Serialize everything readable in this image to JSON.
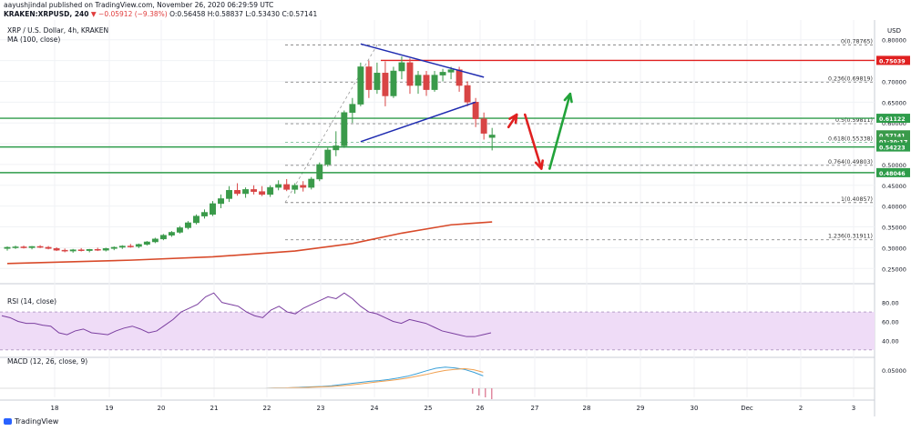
{
  "header": {
    "publisher_line": "aayushjindal published on TradingView.com, November 26, 2020 06:29:59 UTC",
    "symbol": "KRAKEN:XRPUSD, 240",
    "change": "▼ −0.05912 (−9.38%)",
    "ohlc": "O:0.56458 H:0.58837 L:0.53430 C:0.57141"
  },
  "legend": {
    "title": "XRP / U.S. Dollar, 4h, KRAKEN",
    "ma": "MA (100, close)",
    "currency": "USD"
  },
  "rsi_label": "RSI (14, close)",
  "macd_label": "MACD (12, 26, close, 9)",
  "brand": "TradingView",
  "colors": {
    "up": "#3a9a4a",
    "down": "#d84545",
    "ma": "#d84a2a",
    "hline_green": "#2e9c4a",
    "hline_red": "#e02020",
    "triangle": "#1e2bb0",
    "fib": "#888888",
    "rsi": "#7b3fa0",
    "rsi_band": "#efdcf7",
    "macd": "#3aa0d8",
    "signal": "#f0a050"
  },
  "price_axis": {
    "ticks": [
      "0.80000",
      "0.75000",
      "0.70000",
      "0.65000",
      "0.60000",
      "0.55000",
      "0.50000",
      "0.45000",
      "0.40000",
      "0.35000",
      "0.30000",
      "0.25000"
    ],
    "badges": [
      {
        "value": 0.75039,
        "label": "0.75039",
        "color": "#e02020"
      },
      {
        "value": 0.61122,
        "label": "0.61122",
        "color": "#2e9c4a"
      },
      {
        "value": 0.57141,
        "label": "0.57141",
        "color": "#3a9a4a"
      },
      {
        "value": 0.556,
        "label": "01:30:17",
        "color": "#3a9a4a"
      },
      {
        "value": 0.54223,
        "label": "0.54223",
        "color": "#2e9c4a"
      },
      {
        "value": 0.48046,
        "label": "0.48046",
        "color": "#2e9c4a"
      }
    ]
  },
  "rsi_axis": {
    "ticks": [
      "80.00",
      "60.00",
      "40.00"
    ]
  },
  "macd_axis": {
    "ticks": [
      "0.05000"
    ]
  },
  "x_axis": {
    "labels": [
      "18",
      "19",
      "20",
      "21",
      "22",
      "23",
      "24",
      "25",
      "26",
      "27",
      "28",
      "29",
      "30",
      "Dec",
      "2",
      "3"
    ]
  },
  "chart_data": {
    "type": "candlestick",
    "title": "XRP / U.S. Dollar, 4h, KRAKEN",
    "ylim": [
      0.22,
      0.83
    ],
    "fib_levels": [
      {
        "label": "0(0.78765)",
        "value": 0.78765
      },
      {
        "label": "0.236(0.69819)",
        "value": 0.69819
      },
      {
        "label": "0.5(0.59811)",
        "value": 0.59811
      },
      {
        "label": "0.618(0.55338)",
        "value": 0.55338
      },
      {
        "label": "0.764(0.49803)",
        "value": 0.49803
      },
      {
        "label": "1(0.40857)",
        "value": 0.40857
      },
      {
        "label": "1.236(0.31911)",
        "value": 0.31911
      }
    ],
    "horizontal_lines": [
      {
        "value": 0.75039,
        "color": "red"
      },
      {
        "value": 0.61122,
        "color": "green"
      },
      {
        "value": 0.54223,
        "color": "green"
      },
      {
        "value": 0.48046,
        "color": "green"
      }
    ],
    "candles": [
      [
        0.298,
        0.303,
        0.293,
        0.301
      ],
      [
        0.301,
        0.305,
        0.297,
        0.302
      ],
      [
        0.302,
        0.305,
        0.298,
        0.3
      ],
      [
        0.3,
        0.304,
        0.296,
        0.303
      ],
      [
        0.303,
        0.306,
        0.299,
        0.301
      ],
      [
        0.301,
        0.304,
        0.296,
        0.298
      ],
      [
        0.298,
        0.301,
        0.292,
        0.294
      ],
      [
        0.294,
        0.298,
        0.289,
        0.292
      ],
      [
        0.292,
        0.297,
        0.288,
        0.295
      ],
      [
        0.295,
        0.299,
        0.291,
        0.293
      ],
      [
        0.293,
        0.297,
        0.289,
        0.296
      ],
      [
        0.296,
        0.3,
        0.292,
        0.294
      ],
      [
        0.294,
        0.3,
        0.291,
        0.298
      ],
      [
        0.298,
        0.303,
        0.294,
        0.301
      ],
      [
        0.301,
        0.306,
        0.297,
        0.304
      ],
      [
        0.304,
        0.309,
        0.3,
        0.303
      ],
      [
        0.303,
        0.31,
        0.299,
        0.308
      ],
      [
        0.308,
        0.316,
        0.305,
        0.314
      ],
      [
        0.314,
        0.324,
        0.311,
        0.321
      ],
      [
        0.321,
        0.333,
        0.318,
        0.33
      ],
      [
        0.33,
        0.34,
        0.326,
        0.337
      ],
      [
        0.337,
        0.352,
        0.334,
        0.348
      ],
      [
        0.348,
        0.364,
        0.344,
        0.36
      ],
      [
        0.36,
        0.38,
        0.356,
        0.376
      ],
      [
        0.376,
        0.392,
        0.37,
        0.385
      ],
      [
        0.38,
        0.412,
        0.376,
        0.406
      ],
      [
        0.406,
        0.428,
        0.395,
        0.418
      ],
      [
        0.418,
        0.448,
        0.41,
        0.438
      ],
      [
        0.438,
        0.455,
        0.425,
        0.43
      ],
      [
        0.43,
        0.445,
        0.42,
        0.44
      ],
      [
        0.44,
        0.45,
        0.428,
        0.435
      ],
      [
        0.435,
        0.448,
        0.424,
        0.428
      ],
      [
        0.428,
        0.45,
        0.422,
        0.445
      ],
      [
        0.445,
        0.462,
        0.438,
        0.452
      ],
      [
        0.452,
        0.465,
        0.436,
        0.44
      ],
      [
        0.44,
        0.455,
        0.43,
        0.45
      ],
      [
        0.45,
        0.46,
        0.435,
        0.445
      ],
      [
        0.445,
        0.47,
        0.44,
        0.465
      ],
      [
        0.465,
        0.505,
        0.46,
        0.5
      ],
      [
        0.5,
        0.54,
        0.495,
        0.535
      ],
      [
        0.535,
        0.58,
        0.52,
        0.545
      ],
      [
        0.545,
        0.63,
        0.54,
        0.625
      ],
      [
        0.625,
        0.66,
        0.6,
        0.645
      ],
      [
        0.645,
        0.745,
        0.64,
        0.735
      ],
      [
        0.735,
        0.75,
        0.66,
        0.68
      ],
      [
        0.68,
        0.745,
        0.67,
        0.72
      ],
      [
        0.72,
        0.748,
        0.64,
        0.665
      ],
      [
        0.665,
        0.735,
        0.66,
        0.725
      ],
      [
        0.725,
        0.76,
        0.705,
        0.745
      ],
      [
        0.745,
        0.755,
        0.67,
        0.69
      ],
      [
        0.69,
        0.725,
        0.67,
        0.715
      ],
      [
        0.715,
        0.725,
        0.665,
        0.68
      ],
      [
        0.68,
        0.725,
        0.675,
        0.715
      ],
      [
        0.715,
        0.73,
        0.7,
        0.722
      ],
      [
        0.722,
        0.735,
        0.705,
        0.728
      ],
      [
        0.728,
        0.735,
        0.675,
        0.69
      ],
      [
        0.69,
        0.7,
        0.64,
        0.65
      ],
      [
        0.65,
        0.66,
        0.59,
        0.61
      ],
      [
        0.61,
        0.625,
        0.56,
        0.575
      ],
      [
        0.565,
        0.588,
        0.534,
        0.571
      ]
    ],
    "ma100": [
      [
        0,
        0.262
      ],
      [
        15,
        0.27
      ],
      [
        25,
        0.278
      ],
      [
        35,
        0.292
      ],
      [
        42,
        0.31
      ],
      [
        48,
        0.335
      ],
      [
        54,
        0.355
      ],
      [
        59,
        0.362
      ]
    ],
    "triangle": {
      "upper": [
        [
          43,
          0.79
        ],
        [
          58,
          0.71
        ]
      ],
      "lower": [
        [
          43,
          0.555
        ],
        [
          57,
          0.65
        ]
      ]
    },
    "arrows": [
      {
        "from": [
          61,
          0.59
        ],
        "to": [
          62,
          0.62
        ],
        "color": "red"
      },
      {
        "from": [
          63,
          0.62
        ],
        "to": [
          65,
          0.49
        ],
        "color": "red"
      },
      {
        "from": [
          66,
          0.49
        ],
        "to": [
          68.5,
          0.67
        ],
        "color": "green"
      }
    ],
    "rsi": {
      "ylim": [
        25,
        95
      ],
      "band": [
        30,
        70
      ],
      "values": [
        66,
        64,
        60,
        58,
        58,
        56,
        55,
        48,
        46,
        50,
        52,
        48,
        47,
        46,
        50,
        53,
        55,
        52,
        48,
        50,
        56,
        62,
        70,
        74,
        78,
        86,
        90,
        80,
        78,
        76,
        70,
        66,
        64,
        72,
        76,
        70,
        68,
        74,
        78,
        82,
        86,
        84,
        90,
        84,
        76,
        70,
        68,
        64,
        60,
        58,
        62,
        60,
        58,
        54,
        50,
        48,
        46,
        44,
        44,
        46,
        48
      ]
    },
    "macd": {
      "ylim": [
        -0.025,
        0.075
      ],
      "macd": [
        0.0,
        0.0,
        0.0,
        0.0,
        0.001,
        0.001,
        0.002,
        0.003,
        0.004,
        0.005,
        0.007,
        0.01,
        0.013,
        0.016,
        0.019,
        0.021,
        0.024,
        0.028,
        0.033,
        0.04,
        0.048,
        0.055,
        0.058,
        0.056,
        0.052,
        0.044,
        0.034
      ],
      "signal": [
        0.0,
        0.0,
        0.0,
        0.0,
        0.001,
        0.001,
        0.002,
        0.002,
        0.003,
        0.004,
        0.005,
        0.007,
        0.009,
        0.012,
        0.015,
        0.018,
        0.021,
        0.024,
        0.028,
        0.033,
        0.038,
        0.044,
        0.049,
        0.052,
        0.054,
        0.051,
        0.044
      ]
    }
  }
}
